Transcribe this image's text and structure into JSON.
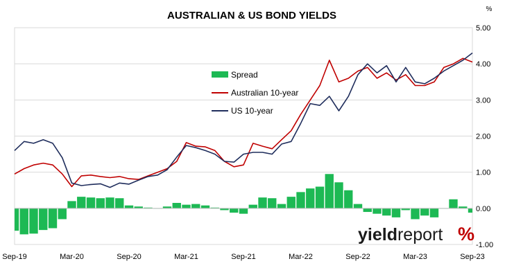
{
  "chart_data": {
    "type": "line",
    "title": "AUSTRALIAN & US BOND YIELDS",
    "unit_label": "%",
    "xlabel": "",
    "ylabel": "",
    "ylim": [
      -1.0,
      5.0
    ],
    "y_ticks": [
      "5.00",
      "4.00",
      "3.00",
      "2.00",
      "1.00",
      "0.00",
      "-1.00"
    ],
    "x_ticks": [
      "Sep-19",
      "Mar-20",
      "Sep-20",
      "Mar-21",
      "Sep-21",
      "Mar-22",
      "Sep-22",
      "Mar-23",
      "Sep-23"
    ],
    "grid": true,
    "legend_position": "center-left",
    "x": [
      "2019-09",
      "2019-10",
      "2019-11",
      "2019-12",
      "2020-01",
      "2020-02",
      "2020-03",
      "2020-04",
      "2020-05",
      "2020-06",
      "2020-07",
      "2020-08",
      "2020-09",
      "2020-10",
      "2020-11",
      "2020-12",
      "2021-01",
      "2021-02",
      "2021-03",
      "2021-04",
      "2021-05",
      "2021-06",
      "2021-07",
      "2021-08",
      "2021-09",
      "2021-10",
      "2021-11",
      "2021-12",
      "2022-01",
      "2022-02",
      "2022-03",
      "2022-04",
      "2022-05",
      "2022-06",
      "2022-07",
      "2022-08",
      "2022-09",
      "2022-10",
      "2022-11",
      "2022-12",
      "2023-01",
      "2023-02",
      "2023-03",
      "2023-04",
      "2023-05",
      "2023-06",
      "2023-07",
      "2023-08",
      "2023-09"
    ],
    "series": [
      {
        "name": "Spread",
        "kind": "bar",
        "color": "#1db954",
        "values": [
          -0.62,
          -0.72,
          -0.7,
          -0.6,
          -0.55,
          -0.3,
          0.2,
          0.32,
          0.3,
          0.28,
          0.3,
          0.28,
          0.08,
          0.05,
          0.02,
          0.0,
          0.05,
          0.15,
          0.1,
          0.12,
          0.08,
          0.02,
          -0.05,
          -0.12,
          -0.15,
          0.1,
          0.3,
          0.28,
          0.12,
          0.32,
          0.45,
          0.55,
          0.6,
          0.95,
          0.72,
          0.5,
          0.12,
          -0.1,
          -0.15,
          -0.2,
          -0.25,
          -0.05,
          -0.3,
          -0.2,
          -0.25,
          0.0,
          0.25,
          0.05,
          -0.12
        ]
      },
      {
        "name": "Australian 10-year",
        "kind": "line",
        "color": "#c00000",
        "values": [
          0.95,
          1.1,
          1.2,
          1.25,
          1.2,
          0.95,
          0.6,
          0.9,
          0.92,
          0.88,
          0.85,
          0.88,
          0.82,
          0.8,
          0.9,
          1.0,
          1.1,
          1.3,
          1.82,
          1.72,
          1.7,
          1.6,
          1.3,
          1.15,
          1.2,
          1.8,
          1.72,
          1.65,
          1.9,
          2.15,
          2.6,
          3.0,
          3.4,
          4.1,
          3.5,
          3.6,
          3.8,
          3.9,
          3.6,
          3.75,
          3.55,
          3.7,
          3.4,
          3.4,
          3.5,
          3.9,
          4.0,
          4.15,
          4.05
        ]
      },
      {
        "name": "US 10-year",
        "kind": "line",
        "color": "#1f2d5c",
        "values": [
          1.6,
          1.85,
          1.8,
          1.9,
          1.8,
          1.4,
          0.7,
          0.63,
          0.66,
          0.68,
          0.58,
          0.7,
          0.67,
          0.78,
          0.88,
          0.92,
          1.07,
          1.42,
          1.74,
          1.68,
          1.6,
          1.5,
          1.3,
          1.28,
          1.5,
          1.55,
          1.55,
          1.5,
          1.78,
          1.85,
          2.35,
          2.9,
          2.85,
          3.1,
          2.7,
          3.1,
          3.7,
          4.0,
          3.75,
          3.95,
          3.5,
          3.9,
          3.5,
          3.45,
          3.6,
          3.8,
          3.95,
          4.1,
          4.3
        ]
      }
    ],
    "watermark": {
      "bold": "yield",
      "regular": "report",
      "symbol": "%"
    }
  }
}
